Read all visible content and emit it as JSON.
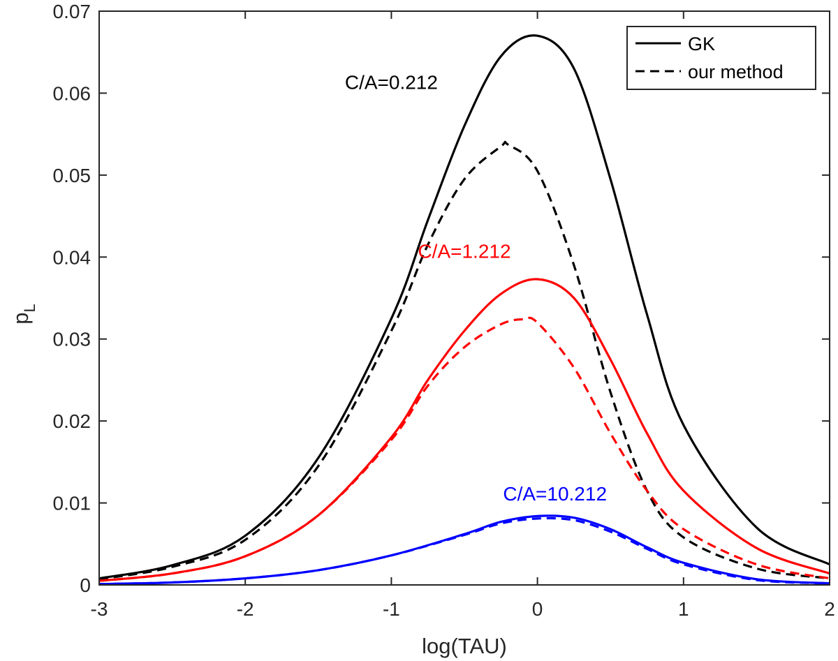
{
  "chart_data": {
    "type": "line",
    "title": "",
    "xlabel": "log(TAU)",
    "ylabel_base": "p",
    "ylabel_sub": "L",
    "xlim": [
      -3,
      2
    ],
    "ylim": [
      0,
      0.07
    ],
    "xticks": [
      -3,
      -2,
      -1,
      0,
      1,
      2
    ],
    "xtick_labels": [
      "-3",
      "-2",
      "-1",
      "0",
      "1",
      "2"
    ],
    "yticks": [
      0,
      0.01,
      0.02,
      0.03,
      0.04,
      0.05,
      0.06,
      0.07
    ],
    "ytick_labels": [
      "0",
      "0.01",
      "0.02",
      "0.03",
      "0.04",
      "0.05",
      "0.06",
      "0.07"
    ],
    "legend": {
      "position": "top-right",
      "entries": [
        {
          "label": "GK",
          "style": "solid",
          "color": "#000000"
        },
        {
          "label": "our method",
          "style": "dashed",
          "color": "#000000"
        }
      ]
    },
    "series": [
      {
        "name": "GK, C/A=0.212",
        "group": "C/A=0.212",
        "method": "GK",
        "style": "solid",
        "color": "#000000",
        "x": [
          -3,
          -2.5,
          -2,
          -1.5,
          -1,
          -0.75,
          -0.5,
          -0.25,
          0,
          0.25,
          0.5,
          0.75,
          1,
          1.5,
          2
        ],
        "y": [
          0.0008,
          0.0024,
          0.006,
          0.0155,
          0.0325,
          0.0445,
          0.056,
          0.0645,
          0.067,
          0.063,
          0.0495,
          0.033,
          0.0195,
          0.007,
          0.0025
        ]
      },
      {
        "name": "our method, C/A=0.212",
        "group": "C/A=0.212",
        "method": "our method",
        "style": "dashed",
        "color": "#000000",
        "x": [
          -3,
          -2.5,
          -2,
          -1.5,
          -1,
          -0.75,
          -0.5,
          -0.25,
          -0.2,
          0,
          0.25,
          0.5,
          0.75,
          1,
          1.5,
          2
        ],
        "y": [
          0.0007,
          0.0022,
          0.0055,
          0.0145,
          0.031,
          0.0415,
          0.0495,
          0.0535,
          0.0537,
          0.0505,
          0.039,
          0.0235,
          0.0115,
          0.0058,
          0.002,
          0.0008
        ]
      },
      {
        "name": "GK, C/A=1.212",
        "group": "C/A=1.212",
        "method": "GK",
        "style": "solid",
        "color": "#ff0000",
        "x": [
          -3,
          -2.5,
          -2,
          -1.5,
          -1,
          -0.75,
          -0.5,
          -0.25,
          0,
          0.25,
          0.5,
          0.75,
          1,
          1.5,
          2
        ],
        "y": [
          0.0005,
          0.0014,
          0.0035,
          0.0085,
          0.018,
          0.025,
          0.031,
          0.0355,
          0.0373,
          0.035,
          0.0275,
          0.0185,
          0.0115,
          0.0045,
          0.0014
        ]
      },
      {
        "name": "our method, C/A=1.212",
        "group": "C/A=1.212",
        "method": "our method",
        "style": "dashed",
        "color": "#ff0000",
        "x": [
          -3,
          -2.5,
          -2,
          -1.5,
          -1,
          -0.75,
          -0.5,
          -0.25,
          -0.1,
          0,
          0.25,
          0.5,
          0.75,
          1,
          1.5,
          2
        ],
        "y": [
          0.0005,
          0.0014,
          0.0035,
          0.0085,
          0.0177,
          0.0243,
          0.029,
          0.0318,
          0.0324,
          0.032,
          0.0265,
          0.0185,
          0.0115,
          0.0068,
          0.0025,
          0.0008
        ]
      },
      {
        "name": "GK, C/A=10.212",
        "group": "C/A=10.212",
        "method": "GK",
        "style": "solid",
        "color": "#0000ff",
        "x": [
          -3,
          -2.5,
          -2,
          -1.5,
          -1,
          -0.5,
          -0.25,
          0,
          0.25,
          0.5,
          0.75,
          1,
          1.5,
          2
        ],
        "y": [
          0.0001,
          0.0003,
          0.0008,
          0.0018,
          0.0036,
          0.0062,
          0.0077,
          0.0084,
          0.0082,
          0.0068,
          0.0046,
          0.0027,
          0.0007,
          0.0002
        ]
      },
      {
        "name": "our method, C/A=10.212",
        "group": "C/A=10.212",
        "method": "our method",
        "style": "dashed",
        "color": "#0000ff",
        "x": [
          -3,
          -2.5,
          -2,
          -1.5,
          -1,
          -0.5,
          -0.25,
          0,
          0.25,
          0.5,
          0.75,
          1,
          1.5,
          2
        ],
        "y": [
          0.0001,
          0.0003,
          0.0008,
          0.0018,
          0.0036,
          0.0061,
          0.0075,
          0.0081,
          0.0079,
          0.0065,
          0.0044,
          0.0025,
          0.0006,
          0.0002
        ]
      }
    ],
    "annotations": [
      {
        "text": "C/A=0.212",
        "x": -1.0,
        "y": 0.0605,
        "color": "#000000"
      },
      {
        "text": "C/A=1.212",
        "x": -0.5,
        "y": 0.0399,
        "color": "#ff0000"
      },
      {
        "text": "C/A=10.212",
        "x": 0.12,
        "y": 0.0103,
        "color": "#0000ff"
      }
    ]
  }
}
